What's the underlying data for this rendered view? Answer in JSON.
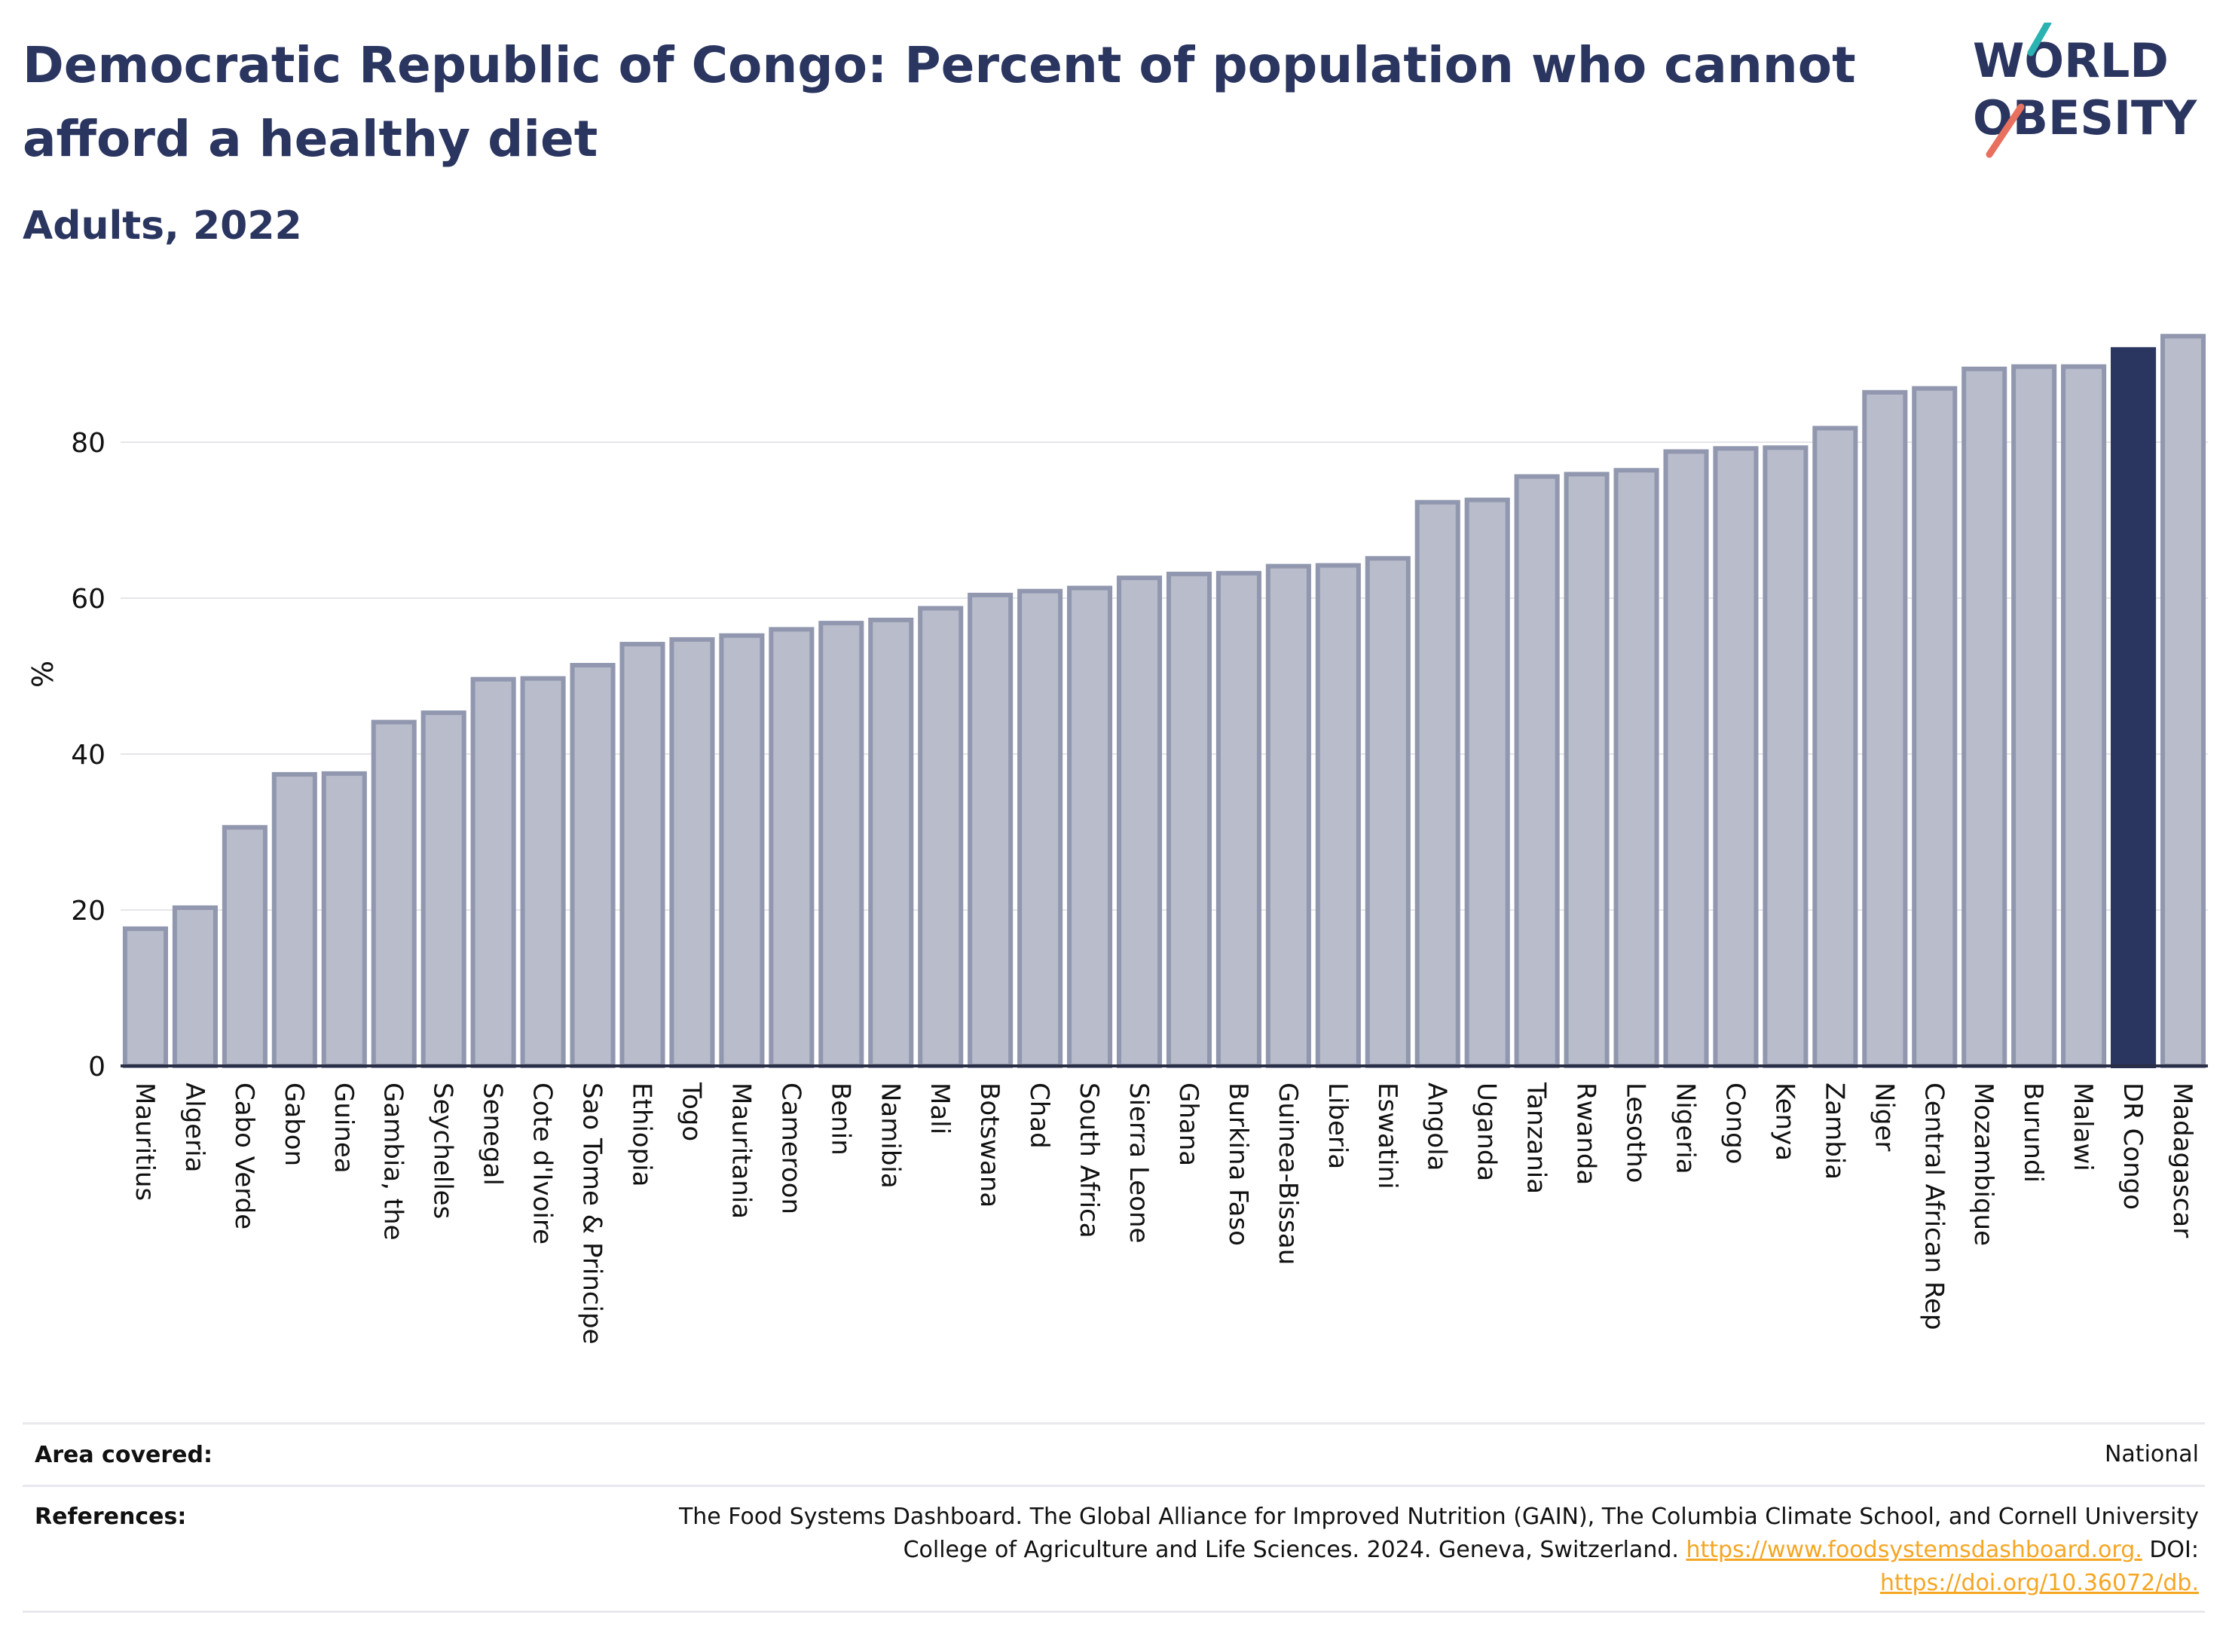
{
  "header": {
    "title": "Democratic Republic of Congo: Percent of population who cannot afford a healthy diet",
    "subtitle": "Adults, 2022",
    "logo_line1": "WORLD",
    "logo_line2": "OBESITY"
  },
  "colors": {
    "bar_fill": "#b8bccb",
    "bar_stroke": "#9197ae",
    "highlight": "#2a3560",
    "title": "#2a3560",
    "link": "#f5a623",
    "logo_teal": "#2bb3b1",
    "logo_coral": "#e8705f"
  },
  "chart_data": {
    "type": "bar",
    "ylabel": "%",
    "xlabel": "",
    "ylim": [
      0,
      100
    ],
    "yticks": [
      0,
      20,
      40,
      60,
      80
    ],
    "grid": true,
    "highlight_category": "DR Congo",
    "categories": [
      "Mauritius",
      "Algeria",
      "Cabo Verde",
      "Gabon",
      "Guinea",
      "Gambia, the",
      "Seychelles",
      "Senegal",
      "Cote d'Ivoire",
      "Sao Tome & Principe",
      "Ethiopia",
      "Togo",
      "Mauritania",
      "Cameroon",
      "Benin",
      "Namibia",
      "Mali",
      "Botswana",
      "Chad",
      "South Africa",
      "Sierra Leone",
      "Ghana",
      "Burkina Faso",
      "Guinea-Bissau",
      "Liberia",
      "Eswatini",
      "Angola",
      "Uganda",
      "Tanzania",
      "Rwanda",
      "Lesotho",
      "Nigeria",
      "Congo",
      "Kenya",
      "Zambia",
      "Niger",
      "Central African Rep",
      "Mozambique",
      "Burundi",
      "Malawi",
      "DR Congo",
      "Madagascar"
    ],
    "values": [
      17.6,
      20.3,
      30.6,
      37.4,
      37.5,
      44.1,
      45.3,
      49.6,
      49.7,
      51.4,
      54.1,
      54.7,
      55.2,
      56.0,
      56.8,
      57.2,
      58.7,
      60.4,
      60.9,
      61.3,
      62.6,
      63.1,
      63.2,
      64.1,
      64.2,
      65.1,
      72.3,
      72.6,
      75.6,
      75.9,
      76.4,
      78.8,
      79.2,
      79.3,
      81.8,
      86.4,
      86.9,
      89.4,
      89.7,
      89.7,
      91.9,
      93.6
    ]
  },
  "footer": {
    "area_label": "Area covered:",
    "area_value": "National",
    "references_label": "References:",
    "references_line1": "The Food Systems Dashboard. The Global Alliance for Improved Nutrition (GAIN), The Columbia Climate School, and Cornell University",
    "references_line2_text": "College of Agriculture and Life Sciences. 2024. Geneva, Switzerland.",
    "references_link1": "https://www.foodsystemsdashboard.org.",
    "references_doi_label": "DOI:",
    "references_link2": "https://doi.org/10.36072/db."
  }
}
